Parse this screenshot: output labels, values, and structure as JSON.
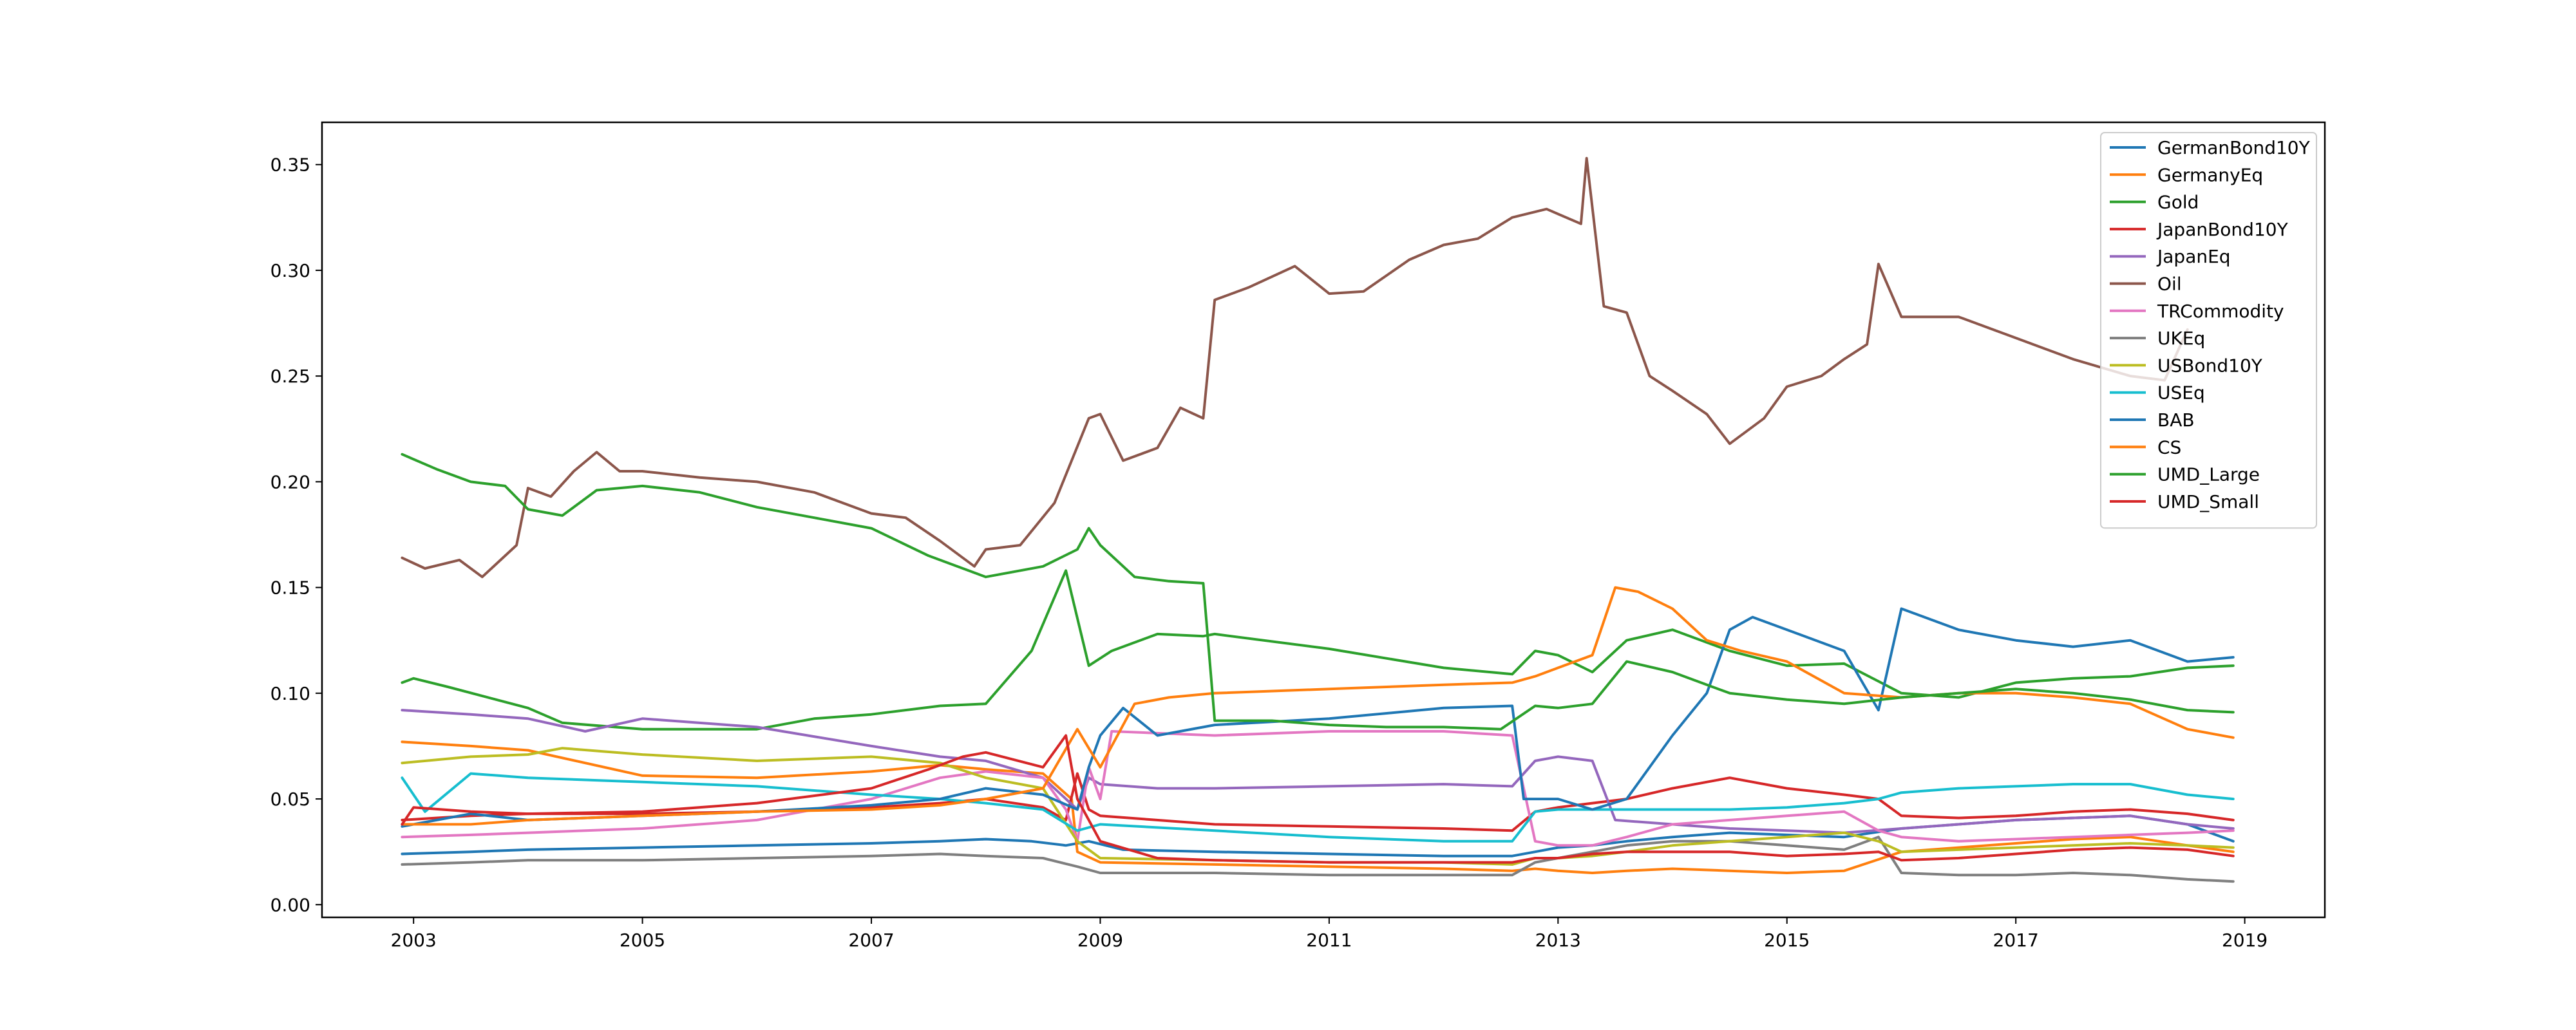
{
  "chart_data": {
    "type": "line",
    "title": "",
    "xlabel": "",
    "ylabel": "",
    "xlim": [
      2002.2,
      2019.7
    ],
    "ylim": [
      -0.006,
      0.37
    ],
    "x_ticks": [
      2003,
      2005,
      2007,
      2009,
      2011,
      2013,
      2015,
      2017,
      2019
    ],
    "x_tick_labels": [
      "2003",
      "2005",
      "2007",
      "2009",
      "2011",
      "2013",
      "2015",
      "2017",
      "2019"
    ],
    "y_ticks": [
      0.0,
      0.05,
      0.1,
      0.15,
      0.2,
      0.25,
      0.3,
      0.35
    ],
    "y_tick_labels": [
      "0.00",
      "0.05",
      "0.10",
      "0.15",
      "0.20",
      "0.25",
      "0.30",
      "0.35"
    ],
    "grid": false,
    "legend_position": "top-right",
    "series": [
      {
        "name": "GermanBond10Y",
        "color": "#1f77b4",
        "x": [
          2002.9,
          2003.5,
          2004.0,
          2005.0,
          2006.0,
          2007.0,
          2007.6,
          2008.0,
          2008.4,
          2008.7,
          2008.9,
          2009.2,
          2010.0,
          2011.0,
          2012.0,
          2012.6,
          2012.8,
          2013.0,
          2013.3,
          2013.6,
          2014.0,
          2014.5,
          2015.0,
          2015.5,
          2016.0,
          2016.5,
          2017.0,
          2017.5,
          2018.0,
          2018.5,
          2018.9
        ],
        "y": [
          0.024,
          0.025,
          0.026,
          0.027,
          0.028,
          0.029,
          0.03,
          0.031,
          0.03,
          0.028,
          0.03,
          0.026,
          0.025,
          0.024,
          0.023,
          0.023,
          0.025,
          0.027,
          0.028,
          0.03,
          0.032,
          0.034,
          0.033,
          0.032,
          0.036,
          0.038,
          0.04,
          0.041,
          0.042,
          0.038,
          0.03
        ]
      },
      {
        "name": "GermanyEq",
        "color": "#ff7f0e",
        "x": [
          2002.9,
          2003.5,
          2004.0,
          2005.0,
          2006.0,
          2007.0,
          2007.6,
          2008.0,
          2008.5,
          2008.75,
          2008.8,
          2009.0,
          2010.0,
          2011.0,
          2012.0,
          2012.6,
          2012.8,
          2013.0,
          2013.3,
          2013.6,
          2014.0,
          2014.5,
          2015.0,
          2015.5,
          2016.0,
          2016.5,
          2017.0,
          2017.5,
          2018.0,
          2018.5,
          2018.9
        ],
        "y": [
          0.077,
          0.075,
          0.073,
          0.061,
          0.06,
          0.063,
          0.066,
          0.064,
          0.062,
          0.05,
          0.025,
          0.02,
          0.019,
          0.018,
          0.017,
          0.016,
          0.017,
          0.016,
          0.015,
          0.016,
          0.017,
          0.016,
          0.015,
          0.016,
          0.025,
          0.027,
          0.029,
          0.031,
          0.032,
          0.028,
          0.025
        ]
      },
      {
        "name": "Gold",
        "color": "#2ca02c",
        "x": [
          2002.9,
          2003.0,
          2003.3,
          2004.0,
          2004.3,
          2005.0,
          2006.0,
          2006.5,
          2007.0,
          2007.6,
          2008.0,
          2008.4,
          2008.7,
          2008.9,
          2009.1,
          2009.5,
          2009.9,
          2010.0,
          2011.0,
          2012.0,
          2012.6,
          2012.8,
          2013.0,
          2013.3,
          2013.6,
          2014.0,
          2014.5,
          2015.0,
          2015.5,
          2016.0,
          2016.5,
          2017.0,
          2017.5,
          2018.0,
          2018.5,
          2018.9
        ],
        "y": [
          0.105,
          0.107,
          0.103,
          0.093,
          0.086,
          0.083,
          0.083,
          0.088,
          0.09,
          0.094,
          0.095,
          0.12,
          0.158,
          0.113,
          0.12,
          0.128,
          0.127,
          0.128,
          0.121,
          0.112,
          0.109,
          0.12,
          0.118,
          0.11,
          0.125,
          0.13,
          0.12,
          0.113,
          0.114,
          0.1,
          0.098,
          0.105,
          0.107,
          0.108,
          0.112,
          0.113
        ]
      },
      {
        "name": "JapanBond10Y",
        "color": "#d62728",
        "x": [
          2002.9,
          2003.5,
          2004.0,
          2005.0,
          2006.0,
          2007.0,
          2007.6,
          2008.0,
          2008.5,
          2008.7,
          2008.8,
          2008.9,
          2009.0,
          2010.0,
          2011.0,
          2012.0,
          2012.6,
          2012.8,
          2013.0,
          2013.3,
          2013.6,
          2014.0,
          2014.5,
          2015.0,
          2015.5,
          2015.8,
          2016.0,
          2016.5,
          2017.0,
          2017.5,
          2018.0,
          2018.5,
          2018.9
        ],
        "y": [
          0.04,
          0.042,
          0.043,
          0.043,
          0.044,
          0.046,
          0.048,
          0.05,
          0.046,
          0.04,
          0.062,
          0.045,
          0.042,
          0.038,
          0.037,
          0.036,
          0.035,
          0.044,
          0.046,
          0.048,
          0.05,
          0.055,
          0.06,
          0.055,
          0.052,
          0.05,
          0.042,
          0.041,
          0.042,
          0.044,
          0.045,
          0.043,
          0.04
        ]
      },
      {
        "name": "JapanEq",
        "color": "#9467bd",
        "x": [
          2002.9,
          2003.5,
          2004.0,
          2004.5,
          2005.0,
          2006.0,
          2007.0,
          2007.6,
          2008.0,
          2008.5,
          2008.8,
          2008.9,
          2009.0,
          2009.5,
          2010.0,
          2011.0,
          2012.0,
          2012.6,
          2012.8,
          2013.0,
          2013.3,
          2013.5,
          2014.0,
          2014.5,
          2015.0,
          2015.5,
          2016.0,
          2016.5,
          2017.0,
          2017.5,
          2018.0,
          2018.5,
          2018.9
        ],
        "y": [
          0.092,
          0.09,
          0.088,
          0.082,
          0.088,
          0.084,
          0.075,
          0.07,
          0.068,
          0.06,
          0.045,
          0.06,
          0.057,
          0.055,
          0.055,
          0.056,
          0.057,
          0.056,
          0.068,
          0.07,
          0.068,
          0.04,
          0.038,
          0.036,
          0.035,
          0.034,
          0.036,
          0.038,
          0.04,
          0.041,
          0.042,
          0.038,
          0.036
        ]
      },
      {
        "name": "Oil",
        "color": "#8c564b",
        "x": [
          2002.9,
          2003.1,
          2003.4,
          2003.6,
          2003.9,
          2004.0,
          2004.2,
          2004.4,
          2004.6,
          2004.8,
          2005.0,
          2005.5,
          2006.0,
          2006.5,
          2007.0,
          2007.3,
          2007.6,
          2007.9,
          2008.0,
          2008.3,
          2008.6,
          2008.9,
          2009.0,
          2009.2,
          2009.5,
          2009.7,
          2009.9,
          2010.0,
          2010.3,
          2010.7,
          2011.0,
          2011.3,
          2011.7,
          2012.0,
          2012.3,
          2012.6,
          2012.9,
          2013.2,
          2013.25,
          2013.4,
          2013.6,
          2013.8,
          2014.0,
          2014.3,
          2014.5,
          2014.8,
          2015.0,
          2015.3,
          2015.5,
          2015.7,
          2015.8,
          2016.0,
          2016.5,
          2017.0,
          2017.5,
          2018.0,
          2018.3,
          2018.5
        ],
        "y": [
          0.164,
          0.159,
          0.163,
          0.155,
          0.17,
          0.197,
          0.193,
          0.205,
          0.214,
          0.205,
          0.205,
          0.202,
          0.2,
          0.195,
          0.185,
          0.183,
          0.172,
          0.16,
          0.168,
          0.17,
          0.19,
          0.23,
          0.232,
          0.21,
          0.216,
          0.235,
          0.23,
          0.286,
          0.292,
          0.302,
          0.289,
          0.29,
          0.305,
          0.312,
          0.315,
          0.325,
          0.329,
          0.322,
          0.353,
          0.283,
          0.28,
          0.25,
          0.243,
          0.232,
          0.218,
          0.23,
          0.245,
          0.25,
          0.258,
          0.265,
          0.303,
          0.278,
          0.278,
          0.268,
          0.258,
          0.25,
          0.248,
          0.272
        ]
      },
      {
        "name": "TRCommodity",
        "color": "#e377c2",
        "x": [
          2002.9,
          2003.5,
          2004.0,
          2005.0,
          2006.0,
          2007.0,
          2007.6,
          2008.0,
          2008.5,
          2008.7,
          2008.8,
          2008.9,
          2009.0,
          2009.1,
          2010.0,
          2011.0,
          2012.0,
          2012.6,
          2012.8,
          2013.0,
          2013.3,
          2013.6,
          2014.0,
          2014.5,
          2015.0,
          2015.5,
          2015.8,
          2016.0,
          2016.5,
          2017.0,
          2017.5,
          2018.0,
          2018.5,
          2018.9
        ],
        "y": [
          0.032,
          0.033,
          0.034,
          0.036,
          0.04,
          0.05,
          0.06,
          0.063,
          0.06,
          0.045,
          0.03,
          0.065,
          0.05,
          0.082,
          0.08,
          0.082,
          0.082,
          0.08,
          0.03,
          0.028,
          0.028,
          0.032,
          0.038,
          0.04,
          0.042,
          0.044,
          0.035,
          0.032,
          0.03,
          0.031,
          0.032,
          0.033,
          0.034,
          0.035
        ]
      },
      {
        "name": "UKEq",
        "color": "#7f7f7f",
        "x": [
          2002.9,
          2003.5,
          2004.0,
          2005.0,
          2006.0,
          2007.0,
          2007.6,
          2008.0,
          2008.5,
          2008.8,
          2009.0,
          2010.0,
          2011.0,
          2012.0,
          2012.6,
          2012.8,
          2013.0,
          2013.3,
          2013.6,
          2014.0,
          2014.5,
          2015.0,
          2015.5,
          2015.8,
          2016.0,
          2016.5,
          2017.0,
          2017.5,
          2018.0,
          2018.5,
          2018.9
        ],
        "y": [
          0.019,
          0.02,
          0.021,
          0.021,
          0.022,
          0.023,
          0.024,
          0.023,
          0.022,
          0.018,
          0.015,
          0.015,
          0.014,
          0.014,
          0.014,
          0.02,
          0.022,
          0.025,
          0.028,
          0.03,
          0.03,
          0.028,
          0.026,
          0.032,
          0.015,
          0.014,
          0.014,
          0.015,
          0.014,
          0.012,
          0.011
        ]
      },
      {
        "name": "USBond10Y",
        "color": "#bcbd22",
        "x": [
          2002.9,
          2003.5,
          2004.0,
          2004.3,
          2005.0,
          2006.0,
          2007.0,
          2007.6,
          2008.0,
          2008.5,
          2008.8,
          2009.0,
          2010.0,
          2011.0,
          2012.0,
          2012.6,
          2012.8,
          2013.0,
          2013.3,
          2013.6,
          2014.0,
          2014.5,
          2015.0,
          2015.5,
          2015.8,
          2016.0,
          2016.5,
          2017.0,
          2017.5,
          2018.0,
          2018.5,
          2018.9
        ],
        "y": [
          0.067,
          0.07,
          0.071,
          0.074,
          0.071,
          0.068,
          0.07,
          0.067,
          0.06,
          0.055,
          0.03,
          0.022,
          0.021,
          0.02,
          0.02,
          0.019,
          0.022,
          0.022,
          0.023,
          0.025,
          0.028,
          0.03,
          0.032,
          0.034,
          0.03,
          0.025,
          0.026,
          0.027,
          0.028,
          0.029,
          0.028,
          0.027
        ]
      },
      {
        "name": "USEq",
        "color": "#17becf",
        "x": [
          2002.9,
          2003.1,
          2003.5,
          2004.0,
          2005.0,
          2006.0,
          2007.0,
          2007.6,
          2008.0,
          2008.5,
          2008.8,
          2009.0,
          2010.0,
          2011.0,
          2012.0,
          2012.6,
          2012.8,
          2013.0,
          2013.3,
          2013.6,
          2014.0,
          2014.5,
          2015.0,
          2015.5,
          2015.8,
          2016.0,
          2016.5,
          2017.0,
          2017.5,
          2018.0,
          2018.5,
          2018.9
        ],
        "y": [
          0.06,
          0.044,
          0.062,
          0.06,
          0.058,
          0.056,
          0.052,
          0.05,
          0.048,
          0.045,
          0.035,
          0.038,
          0.035,
          0.032,
          0.03,
          0.03,
          0.044,
          0.045,
          0.045,
          0.045,
          0.045,
          0.045,
          0.046,
          0.048,
          0.05,
          0.053,
          0.055,
          0.056,
          0.057,
          0.057,
          0.052,
          0.05
        ]
      },
      {
        "name": "BAB",
        "color": "#1f77b4",
        "x": [
          2002.9,
          2003.5,
          2004.0,
          2005.0,
          2006.0,
          2007.0,
          2007.6,
          2008.0,
          2008.5,
          2008.8,
          2008.9,
          2009.0,
          2009.2,
          2009.5,
          2010.0,
          2011.0,
          2012.0,
          2012.6,
          2012.7,
          2013.0,
          2013.3,
          2013.6,
          2014.0,
          2014.3,
          2014.5,
          2014.7,
          2015.0,
          2015.5,
          2015.8,
          2016.0,
          2016.5,
          2017.0,
          2017.5,
          2018.0,
          2018.5,
          2018.9
        ],
        "y": [
          0.037,
          0.043,
          0.04,
          0.042,
          0.044,
          0.047,
          0.05,
          0.055,
          0.052,
          0.045,
          0.065,
          0.08,
          0.093,
          0.08,
          0.085,
          0.088,
          0.093,
          0.094,
          0.05,
          0.05,
          0.045,
          0.05,
          0.08,
          0.1,
          0.13,
          0.136,
          0.13,
          0.12,
          0.092,
          0.14,
          0.13,
          0.125,
          0.122,
          0.125,
          0.115,
          0.117
        ]
      },
      {
        "name": "CS",
        "color": "#ff7f0e",
        "x": [
          2002.9,
          2003.5,
          2004.0,
          2005.0,
          2006.0,
          2007.0,
          2007.6,
          2008.0,
          2008.5,
          2008.8,
          2009.0,
          2009.3,
          2009.6,
          2010.0,
          2011.0,
          2012.0,
          2012.6,
          2012.8,
          2013.0,
          2013.3,
          2013.5,
          2013.7,
          2014.0,
          2014.3,
          2014.6,
          2015.0,
          2015.5,
          2016.0,
          2016.5,
          2017.0,
          2017.5,
          2018.0,
          2018.5,
          2018.9
        ],
        "y": [
          0.038,
          0.038,
          0.04,
          0.042,
          0.044,
          0.045,
          0.047,
          0.05,
          0.055,
          0.083,
          0.065,
          0.095,
          0.098,
          0.1,
          0.102,
          0.104,
          0.105,
          0.108,
          0.112,
          0.118,
          0.15,
          0.148,
          0.14,
          0.125,
          0.12,
          0.115,
          0.1,
          0.098,
          0.1,
          0.1,
          0.098,
          0.095,
          0.083,
          0.079
        ]
      },
      {
        "name": "UMD_Large",
        "color": "#2ca02c",
        "x": [
          2002.9,
          2003.2,
          2003.5,
          2003.8,
          2004.0,
          2004.3,
          2004.6,
          2005.0,
          2005.5,
          2006.0,
          2006.5,
          2007.0,
          2007.5,
          2008.0,
          2008.5,
          2008.8,
          2008.9,
          2009.0,
          2009.3,
          2009.6,
          2009.9,
          2010.0,
          2010.5,
          2011.0,
          2011.5,
          2012.0,
          2012.5,
          2012.8,
          2013.0,
          2013.3,
          2013.6,
          2014.0,
          2014.5,
          2015.0,
          2015.5,
          2016.0,
          2016.5,
          2017.0,
          2017.5,
          2018.0,
          2018.5,
          2018.9
        ],
        "y": [
          0.213,
          0.206,
          0.2,
          0.198,
          0.187,
          0.184,
          0.196,
          0.198,
          0.195,
          0.188,
          0.183,
          0.178,
          0.165,
          0.155,
          0.16,
          0.168,
          0.178,
          0.17,
          0.155,
          0.153,
          0.152,
          0.087,
          0.087,
          0.085,
          0.084,
          0.084,
          0.083,
          0.094,
          0.093,
          0.095,
          0.115,
          0.11,
          0.1,
          0.097,
          0.095,
          0.098,
          0.1,
          0.102,
          0.1,
          0.097,
          0.092,
          0.091
        ]
      },
      {
        "name": "UMD_Small",
        "color": "#d62728",
        "x": [
          2002.9,
          2003.0,
          2003.5,
          2004.0,
          2005.0,
          2006.0,
          2007.0,
          2007.5,
          2007.8,
          2008.0,
          2008.5,
          2008.7,
          2008.8,
          2008.9,
          2009.0,
          2009.5,
          2010.0,
          2011.0,
          2012.0,
          2012.6,
          2012.8,
          2013.0,
          2013.3,
          2013.6,
          2014.0,
          2014.5,
          2015.0,
          2015.5,
          2015.8,
          2016.0,
          2016.5,
          2017.0,
          2017.5,
          2018.0,
          2018.5,
          2018.9
        ],
        "y": [
          0.038,
          0.046,
          0.044,
          0.043,
          0.044,
          0.048,
          0.055,
          0.064,
          0.07,
          0.072,
          0.065,
          0.08,
          0.05,
          0.04,
          0.03,
          0.022,
          0.021,
          0.02,
          0.02,
          0.02,
          0.022,
          0.022,
          0.024,
          0.025,
          0.025,
          0.025,
          0.023,
          0.024,
          0.025,
          0.021,
          0.022,
          0.024,
          0.026,
          0.027,
          0.026,
          0.023
        ]
      }
    ]
  }
}
